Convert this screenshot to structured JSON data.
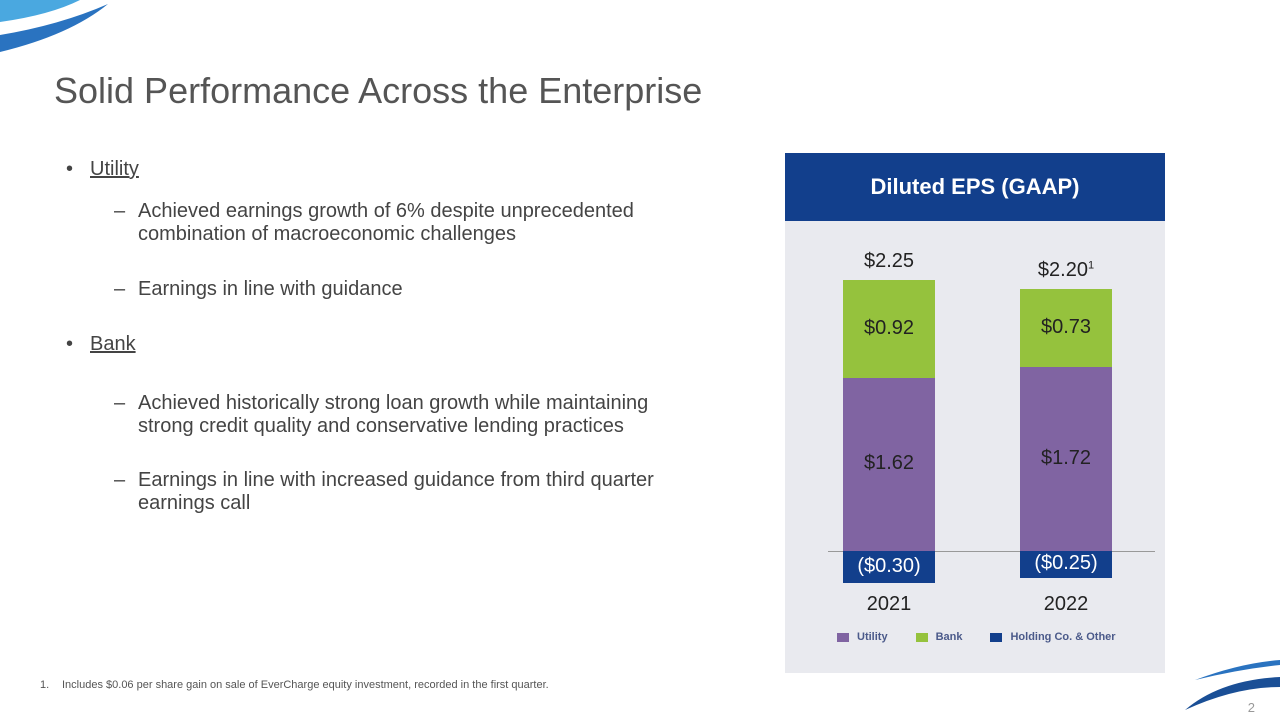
{
  "title": "Solid Performance Across the Enterprise",
  "bullets": [
    {
      "label": "Utility",
      "subs": [
        "Achieved earnings growth of 6% despite unprecedented combination of macroeconomic challenges",
        "Earnings in line with guidance"
      ]
    },
    {
      "label": "Bank",
      "subs": [
        "Achieved historically strong loan growth while maintaining strong credit quality and conservative lending practices",
        "Earnings in line with increased guidance from third quarter earnings call"
      ]
    }
  ],
  "bullet_glyph": "•",
  "dash_glyph": "–",
  "footnote": {
    "num": "1.",
    "text": "Includes $0.06 per share gain on sale of EverCharge equity investment, recorded in the first quarter."
  },
  "page_number": "2",
  "colors": {
    "utility": "#8064a2",
    "bank": "#95c23d",
    "holding": "#123f8c",
    "header": "#123f8c"
  },
  "chart_data": {
    "type": "bar",
    "stacked": true,
    "title": "Diluted EPS (GAAP)",
    "categories": [
      "2021",
      "2022"
    ],
    "series": [
      {
        "name": "Utility",
        "values": [
          1.62,
          1.72
        ],
        "labels": [
          "$1.62",
          "$1.72"
        ]
      },
      {
        "name": "Bank",
        "values": [
          0.92,
          0.73
        ],
        "labels": [
          "$0.92",
          "$0.73"
        ]
      },
      {
        "name": "Holding Co. & Other",
        "values": [
          -0.3,
          -0.25
        ],
        "labels": [
          "($0.30)",
          "($0.25)"
        ]
      }
    ],
    "totals": [
      "$2.25",
      "$2.20"
    ],
    "total_footnotes": [
      "",
      "1"
    ],
    "legend_position": "bottom"
  }
}
